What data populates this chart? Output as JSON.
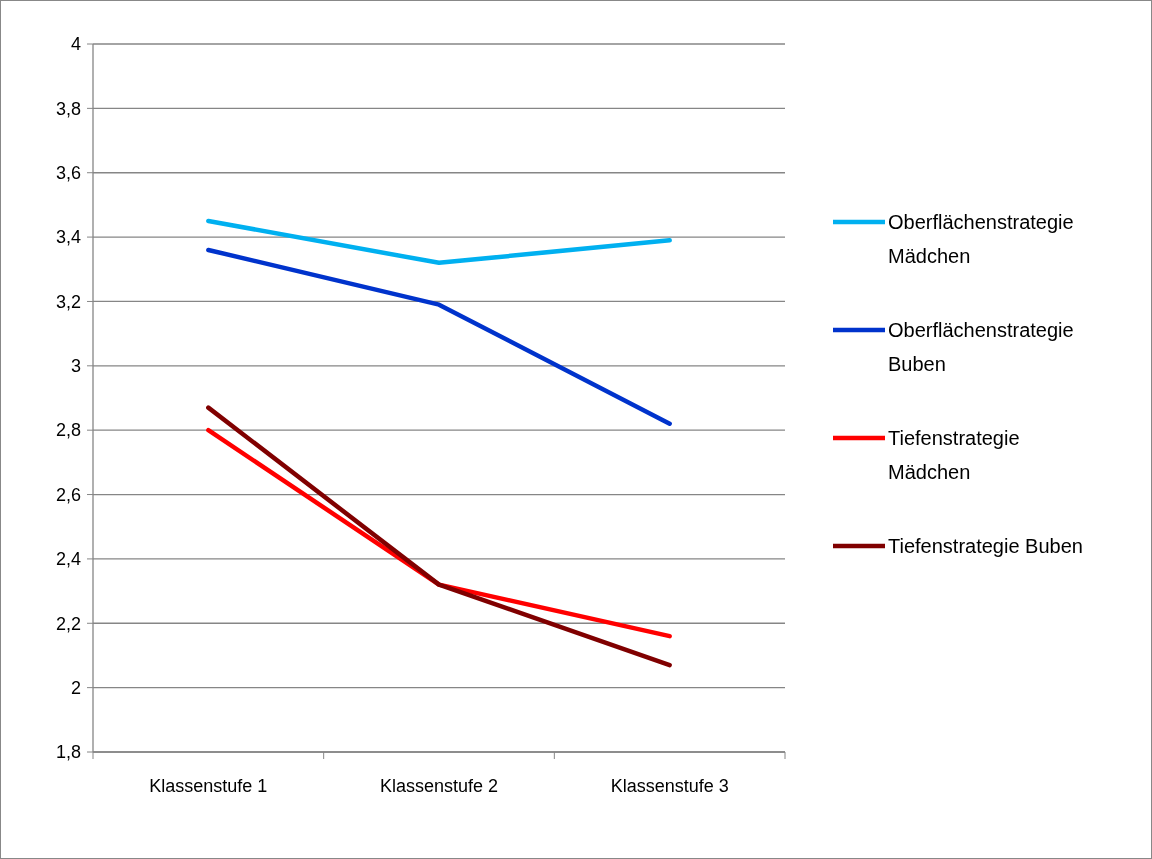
{
  "chart_data": {
    "type": "line",
    "categories": [
      "Klassenstufe 1",
      "Klassenstufe 2",
      "Klassenstufe 3"
    ],
    "series": [
      {
        "name": "Oberflächenstrategie Mädchen",
        "color": "#00b0f0",
        "values": [
          3.45,
          3.32,
          3.39
        ]
      },
      {
        "name": "Oberflächenstrategie Buben",
        "color": "#0033cc",
        "values": [
          3.36,
          3.19,
          2.82
        ]
      },
      {
        "name": "Tiefenstrategie Mädchen",
        "color": "#ff0000",
        "values": [
          2.8,
          2.32,
          2.16
        ]
      },
      {
        "name": "Tiefenstrategie Buben",
        "color": "#800000",
        "values": [
          2.87,
          2.32,
          2.07
        ]
      }
    ],
    "ylim": [
      1.8,
      4
    ],
    "yticks": [
      {
        "value": 1.8,
        "label": "1,8"
      },
      {
        "value": 2,
        "label": "2"
      },
      {
        "value": 2.2,
        "label": "2,2"
      },
      {
        "value": 2.4,
        "label": "2,4"
      },
      {
        "value": 2.6,
        "label": "2,6"
      },
      {
        "value": 2.8,
        "label": "2,8"
      },
      {
        "value": 3,
        "label": "3"
      },
      {
        "value": 3.2,
        "label": "3,2"
      },
      {
        "value": 3.4,
        "label": "3,4"
      },
      {
        "value": 3.6,
        "label": "3,6"
      },
      {
        "value": 3.8,
        "label": "3,8"
      },
      {
        "value": 4,
        "label": "4"
      }
    ],
    "grid": "y",
    "legend": "right",
    "marker": "none",
    "line_style": "solid"
  }
}
